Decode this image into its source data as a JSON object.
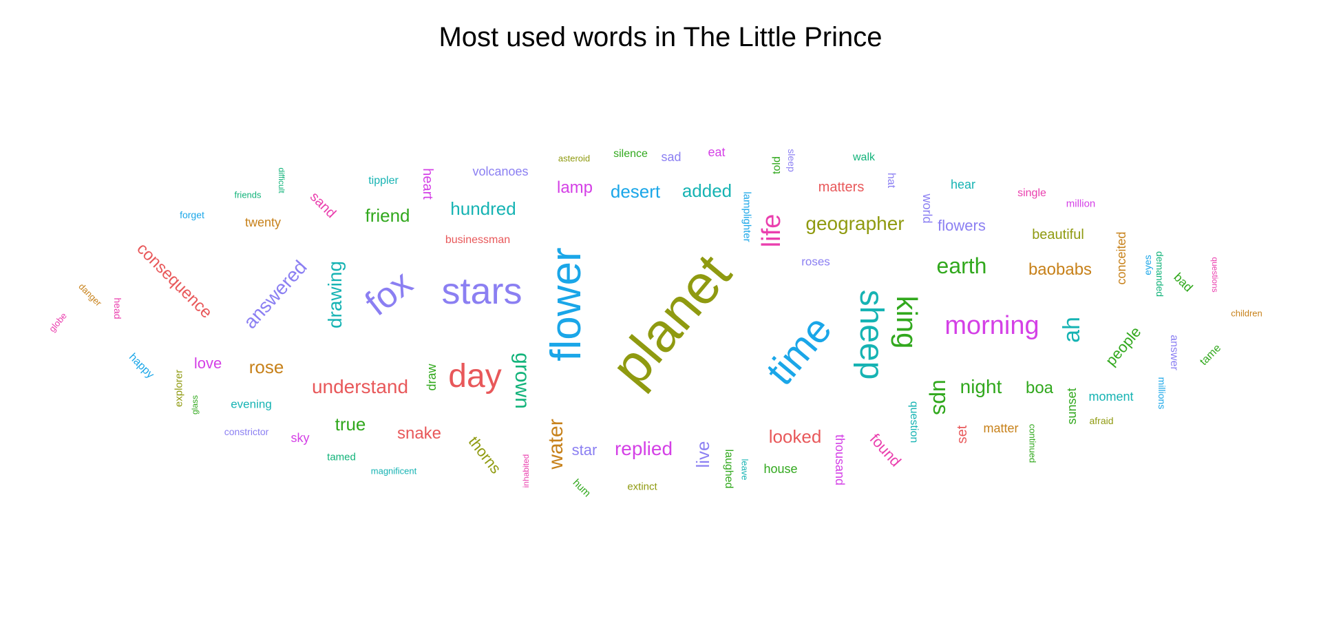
{
  "chart_data": {
    "type": "wordcloud",
    "title": "Most used words in The Little Prince",
    "words": [
      {
        "text": "planet",
        "color": "#8f9a10"
      },
      {
        "text": "flower",
        "color": "#1aa6e8"
      },
      {
        "text": "time",
        "color": "#1aa6e8"
      },
      {
        "text": "stars",
        "color": "#8b7ff2"
      },
      {
        "text": "sheep",
        "color": "#16b3b3"
      },
      {
        "text": "king",
        "color": "#31a81d"
      },
      {
        "text": "fox",
        "color": "#8b7ff2"
      },
      {
        "text": "day",
        "color": "#e8585a"
      },
      {
        "text": "morning",
        "color": "#d440e6"
      },
      {
        "text": "life",
        "color": "#ea3fae"
      },
      {
        "text": "grown",
        "color": "#12b37a"
      },
      {
        "text": "water",
        "color": "#c7811a"
      },
      {
        "text": "drawing",
        "color": "#16b3b3"
      },
      {
        "text": "answered",
        "color": "#8b7ff2"
      },
      {
        "text": "ah",
        "color": "#16b3b3"
      },
      {
        "text": "ups",
        "color": "#31a81d"
      },
      {
        "text": "earth",
        "color": "#31a81d"
      },
      {
        "text": "consequence",
        "color": "#e8585a"
      },
      {
        "text": "geographer",
        "color": "#8f9a10"
      },
      {
        "text": "understand",
        "color": "#e8585a"
      },
      {
        "text": "hundred",
        "color": "#16b3b3"
      },
      {
        "text": "added",
        "color": "#16b3b3"
      },
      {
        "text": "desert",
        "color": "#1aa6e8"
      },
      {
        "text": "replied",
        "color": "#d440e6"
      },
      {
        "text": "night",
        "color": "#31a81d"
      },
      {
        "text": "looked",
        "color": "#e8585a"
      },
      {
        "text": "baobabs",
        "color": "#c7811a"
      },
      {
        "text": "rose",
        "color": "#c7811a"
      },
      {
        "text": "friend",
        "color": "#31a81d"
      },
      {
        "text": "true",
        "color": "#31a81d"
      },
      {
        "text": "snake",
        "color": "#e8585a"
      },
      {
        "text": "lamp",
        "color": "#d440e6"
      },
      {
        "text": "boa",
        "color": "#31a81d"
      },
      {
        "text": "live",
        "color": "#8b7ff2"
      },
      {
        "text": "thorns",
        "color": "#8f9a10"
      },
      {
        "text": "people",
        "color": "#31a81d"
      },
      {
        "text": "flowers",
        "color": "#8b7ff2"
      },
      {
        "text": "beautiful",
        "color": "#8f9a10"
      },
      {
        "text": "found",
        "color": "#ea3fae"
      },
      {
        "text": "love",
        "color": "#d440e6"
      },
      {
        "text": "matters",
        "color": "#e8585a"
      },
      {
        "text": "star",
        "color": "#8b7ff2"
      },
      {
        "text": "heart",
        "color": "#d440e6"
      },
      {
        "text": "sunset",
        "color": "#31a81d"
      },
      {
        "text": "moment",
        "color": "#16b3b3"
      },
      {
        "text": "conceited",
        "color": "#c7811a"
      },
      {
        "text": "draw",
        "color": "#31a81d"
      },
      {
        "text": "sand",
        "color": "#ea3fae"
      },
      {
        "text": "twenty",
        "color": "#c7811a"
      },
      {
        "text": "volcanoes",
        "color": "#8b7ff2"
      },
      {
        "text": "world",
        "color": "#8b7ff2"
      },
      {
        "text": "thousand",
        "color": "#d440e6"
      },
      {
        "text": "laughed",
        "color": "#31a81d"
      },
      {
        "text": "answer",
        "color": "#8b7ff2"
      },
      {
        "text": "question",
        "color": "#16b3b3"
      },
      {
        "text": "set",
        "color": "#e8585a"
      },
      {
        "text": "matter",
        "color": "#c7811a"
      },
      {
        "text": "house",
        "color": "#31a81d"
      },
      {
        "text": "hear",
        "color": "#16b3b3"
      },
      {
        "text": "evening",
        "color": "#16b3b3"
      },
      {
        "text": "sky",
        "color": "#d440e6"
      },
      {
        "text": "lamplighter",
        "color": "#1aa6e8"
      },
      {
        "text": "roses",
        "color": "#8b7ff2"
      },
      {
        "text": "happy",
        "color": "#1aa6e8"
      },
      {
        "text": "explorer",
        "color": "#8f9a10"
      },
      {
        "text": "told",
        "color": "#31a81d"
      },
      {
        "text": "sleep",
        "color": "#8b7ff2"
      },
      {
        "text": "bad",
        "color": "#31a81d"
      },
      {
        "text": "tame",
        "color": "#31a81d"
      },
      {
        "text": "tippler",
        "color": "#16b3b3"
      },
      {
        "text": "businessman",
        "color": "#e8585a"
      },
      {
        "text": "single",
        "color": "#ea3fae"
      },
      {
        "text": "walk",
        "color": "#12b37a"
      },
      {
        "text": "silence",
        "color": "#31a81d"
      },
      {
        "text": "sad",
        "color": "#8b7ff2"
      },
      {
        "text": "eat",
        "color": "#d440e6"
      },
      {
        "text": "hat",
        "color": "#8b7ff2"
      },
      {
        "text": "extinct",
        "color": "#8f9a10"
      },
      {
        "text": "hum",
        "color": "#31a81d"
      },
      {
        "text": "inhabited",
        "color": "#ea3fae"
      },
      {
        "text": "leave",
        "color": "#16b3b3"
      },
      {
        "text": "continued",
        "color": "#31a81d"
      },
      {
        "text": "afraid",
        "color": "#8f9a10"
      },
      {
        "text": "millions",
        "color": "#1aa6e8"
      },
      {
        "text": "eyes",
        "color": "#1aa6e8"
      },
      {
        "text": "demanded",
        "color": "#12b37a"
      },
      {
        "text": "questions",
        "color": "#ea3fae"
      },
      {
        "text": "children",
        "color": "#c7811a"
      },
      {
        "text": "million",
        "color": "#d440e6"
      },
      {
        "text": "asteroid",
        "color": "#8f9a10"
      },
      {
        "text": "difficult",
        "color": "#12b37a"
      },
      {
        "text": "friends",
        "color": "#12b37a"
      },
      {
        "text": "forget",
        "color": "#1aa6e8"
      },
      {
        "text": "danger",
        "color": "#c7811a"
      },
      {
        "text": "head",
        "color": "#ea3fae"
      },
      {
        "text": "globe",
        "color": "#ea3fae"
      },
      {
        "text": "glass",
        "color": "#31a81d"
      },
      {
        "text": "constrictor",
        "color": "#8b7ff2"
      },
      {
        "text": "tamed",
        "color": "#12b37a"
      },
      {
        "text": "magnificent",
        "color": "#16b3b3"
      }
    ]
  }
}
